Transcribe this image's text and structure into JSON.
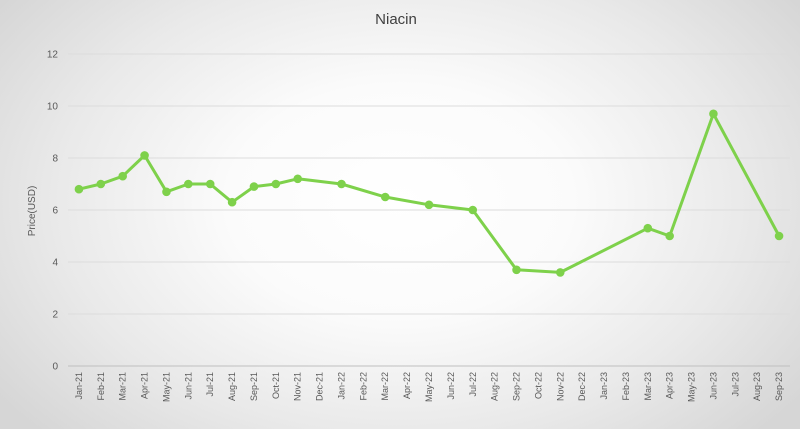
{
  "chart_data": {
    "type": "line",
    "title": "Niacin",
    "xlabel": "",
    "ylabel": "Price(USD)",
    "ylim": [
      0,
      12
    ],
    "yticks": [
      0,
      2,
      4,
      6,
      8,
      10,
      12
    ],
    "grid": true,
    "legend": "none",
    "categories": [
      "Jan-21",
      "Feb-21",
      "Mar-21",
      "Apr-21",
      "May-21",
      "Jun-21",
      "Jul-21",
      "Aug-21",
      "Sep-21",
      "Oct-21",
      "Nov-21",
      "Dec-21",
      "Jan-22",
      "Feb-22",
      "Mar-22",
      "Apr-22",
      "May-22",
      "Jun-22",
      "Jul-22",
      "Aug-22",
      "Sep-22",
      "Oct-22",
      "Nov-22",
      "Dec-22",
      "Jan-23",
      "Feb-23",
      "Mar-23",
      "Apr-23",
      "May-23",
      "Jun-23",
      "Jul-23",
      "Aug-23",
      "Sep-23"
    ],
    "series": [
      {
        "color": "#7ed14b",
        "values": [
          6.8,
          7.0,
          7.3,
          8.1,
          6.7,
          7.0,
          7.0,
          6.3,
          6.9,
          7.0,
          7.2,
          null,
          7.0,
          null,
          6.5,
          null,
          6.2,
          null,
          6.0,
          null,
          3.7,
          null,
          3.6,
          null,
          null,
          null,
          5.3,
          5.0,
          null,
          9.7,
          null,
          null,
          5.0
        ]
      }
    ]
  }
}
